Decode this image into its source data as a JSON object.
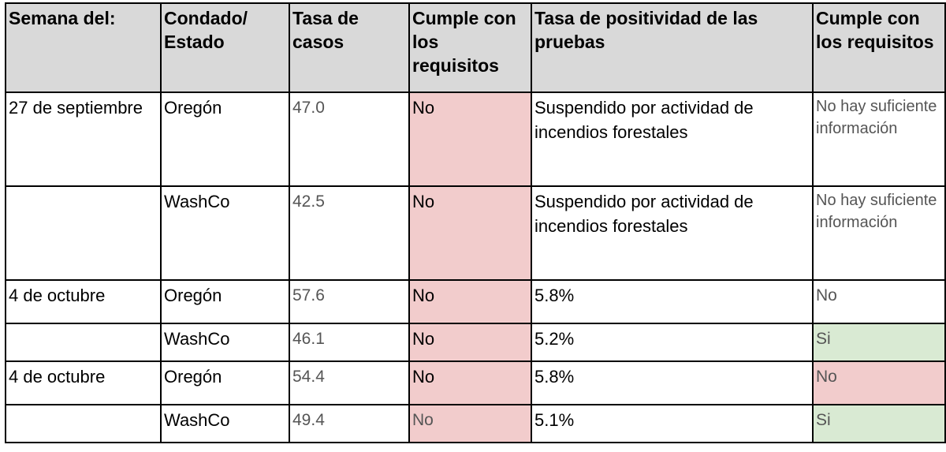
{
  "table": {
    "headers": [
      "Semana del:",
      "Condado/ Estado",
      "Tasa de casos",
      "Cumple con los requisitos",
      "Tasa de positividad de las pruebas",
      "Cumple con los requisitos"
    ],
    "rows": [
      {
        "week": "27 de septiembre",
        "region": "Oregón",
        "case_rate": "47.0",
        "meets_case": "No",
        "positivity": "Suspendido por actividad de incendios forestales",
        "meets_positivity": "No hay suficiente información"
      },
      {
        "week": "",
        "region": "WashCo",
        "case_rate": "42.5",
        "meets_case": "No",
        "positivity": "Suspendido por actividad de incendios forestales",
        "meets_positivity": "No hay suficiente información"
      },
      {
        "week": "4 de octubre",
        "region": "Oregón",
        "case_rate": "57.6",
        "meets_case": "No",
        "positivity": "5.8%",
        "meets_positivity": "No"
      },
      {
        "week": "",
        "region": "WashCo",
        "case_rate": "46.1",
        "meets_case": "No",
        "positivity": "5.2%",
        "meets_positivity": "Si"
      },
      {
        "week": "4 de octubre",
        "region": "Oregón",
        "case_rate": "54.4",
        "meets_case": "No",
        "positivity": "5.8%",
        "meets_positivity": "No"
      },
      {
        "week": "",
        "region": "WashCo",
        "case_rate": "49.4",
        "meets_case": "No",
        "positivity": "5.1%",
        "meets_positivity": "Si"
      }
    ]
  },
  "colors": {
    "header_bg": "#d9d9d9",
    "not_met": "#f2cccc",
    "met": "#d9ead3"
  }
}
